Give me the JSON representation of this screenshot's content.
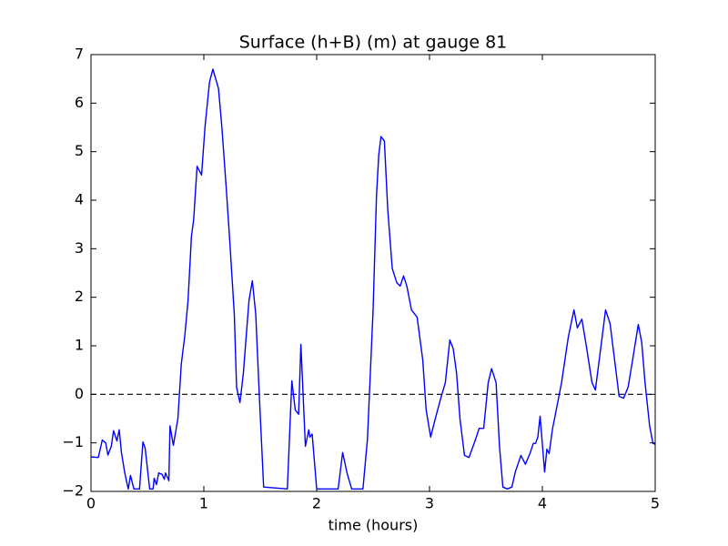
{
  "chart_data": {
    "type": "line",
    "title": "Surface (h+B) (m) at gauge 81",
    "xlabel": "time (hours)",
    "xlim": [
      0,
      5
    ],
    "ylim": [
      -2,
      7
    ],
    "xticks": [
      0,
      1,
      2,
      3,
      4,
      5
    ],
    "yticks": [
      {
        "value": -2,
        "label": "−2"
      },
      {
        "value": -1,
        "label": "−1"
      },
      0,
      1,
      2,
      3,
      4,
      5,
      6,
      7
    ],
    "reference_line": 0,
    "x": [
      0,
      0.065,
      0.1,
      0.13,
      0.15,
      0.18,
      0.2,
      0.23,
      0.25,
      0.27,
      0.3,
      0.33,
      0.35,
      0.38,
      0.43,
      0.46,
      0.48,
      0.52,
      0.55,
      0.56,
      0.58,
      0.6,
      0.63,
      0.65,
      0.66,
      0.69,
      0.7,
      0.73,
      0.77,
      0.8,
      0.83,
      0.86,
      0.89,
      0.91,
      0.94,
      0.98,
      1.01,
      1.05,
      1.08,
      1.13,
      1.16,
      1.2,
      1.23,
      1.27,
      1.29,
      1.32,
      1.35,
      1.4,
      1.43,
      1.46,
      1.49,
      1.53,
      1.74,
      1.78,
      1.81,
      1.84,
      1.86,
      1.9,
      1.93,
      1.94,
      1.96,
      2.0,
      2.19,
      2.23,
      2.27,
      2.31,
      2.41,
      2.45,
      2.5,
      2.53,
      2.55,
      2.57,
      2.6,
      2.63,
      2.67,
      2.71,
      2.74,
      2.77,
      2.8,
      2.84,
      2.89,
      2.94,
      2.97,
      3.01,
      3.05,
      3.1,
      3.14,
      3.18,
      3.21,
      3.24,
      3.27,
      3.31,
      3.35,
      3.4,
      3.44,
      3.48,
      3.52,
      3.55,
      3.59,
      3.62,
      3.65,
      3.69,
      3.73,
      3.76,
      3.81,
      3.85,
      3.89,
      3.92,
      3.94,
      3.96,
      3.98,
      4.02,
      4.04,
      4.06,
      4.09,
      4.12,
      4.17,
      4.23,
      4.28,
      4.31,
      4.35,
      4.39,
      4.44,
      4.47,
      4.52,
      4.56,
      4.6,
      4.64,
      4.68,
      4.72,
      4.76,
      4.8,
      4.85,
      4.88,
      4.91,
      4.95,
      4.98,
      5.0
    ],
    "series": [
      {
        "name": "surface",
        "color": "#0000ff",
        "values": [
          -1.29,
          -1.3,
          -0.94,
          -1.0,
          -1.25,
          -1.07,
          -0.75,
          -0.96,
          -0.73,
          -1.2,
          -1.63,
          -1.95,
          -1.67,
          -1.95,
          -1.95,
          -0.98,
          -1.11,
          -1.95,
          -1.95,
          -1.73,
          -1.86,
          -1.62,
          -1.65,
          -1.75,
          -1.62,
          -1.78,
          -0.65,
          -1.05,
          -0.5,
          0.62,
          1.18,
          1.93,
          3.25,
          3.6,
          4.7,
          4.52,
          5.5,
          6.43,
          6.7,
          6.3,
          5.5,
          4.2,
          3.15,
          1.65,
          0.15,
          -0.17,
          0.43,
          1.93,
          2.34,
          1.65,
          0.06,
          -1.91,
          -1.95,
          0.28,
          -0.32,
          -0.41,
          1.03,
          -1.07,
          -0.73,
          -0.88,
          -0.82,
          -1.95,
          -1.95,
          -1.2,
          -1.63,
          -1.95,
          -1.95,
          -0.92,
          1.74,
          4.09,
          4.93,
          5.31,
          5.22,
          3.8,
          2.59,
          2.3,
          2.23,
          2.44,
          2.22,
          1.74,
          1.59,
          0.71,
          -0.32,
          -0.88,
          -0.51,
          -0.08,
          0.24,
          1.12,
          0.94,
          0.43,
          -0.51,
          -1.26,
          -1.3,
          -0.98,
          -0.7,
          -0.7,
          0.24,
          0.53,
          0.24,
          -1.07,
          -1.91,
          -1.95,
          -1.91,
          -1.6,
          -1.26,
          -1.44,
          -1.22,
          -1.01,
          -1.01,
          -0.88,
          -0.45,
          -1.6,
          -1.13,
          -1.22,
          -0.71,
          -0.36,
          0.24,
          1.18,
          1.74,
          1.37,
          1.55,
          0.99,
          0.24,
          0.09,
          1.0,
          1.74,
          1.46,
          0.71,
          -0.04,
          -0.08,
          0.15,
          0.71,
          1.44,
          1.08,
          0.24,
          -0.64,
          -1.01,
          -1.03
        ]
      }
    ]
  }
}
